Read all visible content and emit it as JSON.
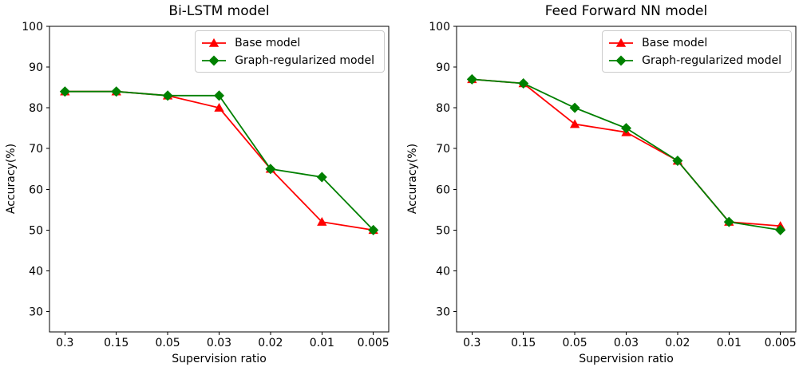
{
  "figure": {
    "background": "#ffffff",
    "text_color": "#000000",
    "legend_border_color": "#cccccc"
  },
  "chart_data": [
    {
      "type": "line",
      "title": "Bi-LSTM model",
      "xlabel": "Supervision ratio",
      "ylabel": "Accuracy(%)",
      "categories": [
        "0.3",
        "0.15",
        "0.05",
        "0.03",
        "0.02",
        "0.01",
        "0.005"
      ],
      "yticks": [
        30,
        40,
        50,
        60,
        70,
        80,
        90,
        100
      ],
      "ylim": [
        25,
        100
      ],
      "grid": false,
      "legend_position": "upper right",
      "series": [
        {
          "name": "Base model",
          "color": "#ff0000",
          "marker": "triangle",
          "values": [
            84,
            84,
            83,
            80,
            65,
            52,
            50
          ]
        },
        {
          "name": "Graph-regularized model",
          "color": "#008000",
          "marker": "diamond",
          "values": [
            84,
            84,
            83,
            83,
            65,
            63,
            50
          ]
        }
      ]
    },
    {
      "type": "line",
      "title": "Feed Forward NN model",
      "xlabel": "Supervision ratio",
      "ylabel": "Accuracy(%)",
      "categories": [
        "0.3",
        "0.15",
        "0.05",
        "0.03",
        "0.02",
        "0.01",
        "0.005"
      ],
      "yticks": [
        30,
        40,
        50,
        60,
        70,
        80,
        90,
        100
      ],
      "ylim": [
        25,
        100
      ],
      "grid": false,
      "legend_position": "upper right",
      "series": [
        {
          "name": "Base model",
          "color": "#ff0000",
          "marker": "triangle",
          "values": [
            87,
            86,
            76,
            74,
            67,
            52,
            51
          ]
        },
        {
          "name": "Graph-regularized model",
          "color": "#008000",
          "marker": "diamond",
          "values": [
            87,
            86,
            80,
            75,
            67,
            52,
            50
          ]
        }
      ]
    }
  ]
}
